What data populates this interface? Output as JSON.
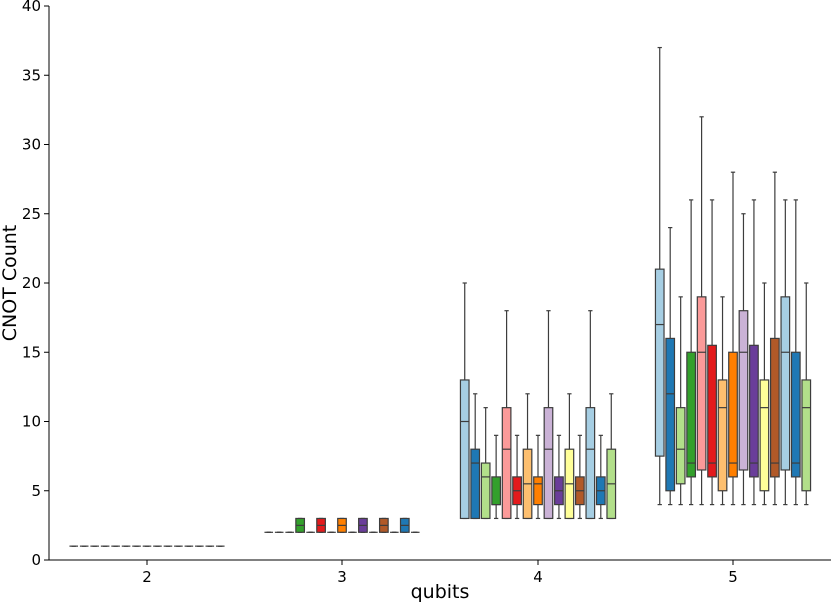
{
  "chart_data": {
    "type": "box",
    "xlabel": "qubits",
    "ylabel": "CNOT Count",
    "ylim": [
      0,
      40
    ],
    "yticks": [
      0,
      5,
      10,
      15,
      20,
      25,
      30,
      35,
      40
    ],
    "categories": [
      "2",
      "3",
      "4",
      "5"
    ],
    "grid": false,
    "legend": "none",
    "palette": [
      "#a6cee3",
      "#1f78b4",
      "#b2df8a",
      "#33a02c",
      "#fb9a99",
      "#e31a1c",
      "#fdbf6f",
      "#ff7f00",
      "#cab2d6",
      "#6a3d9a",
      "#ffff99",
      "#b15928"
    ],
    "groups": [
      {
        "category": "2",
        "boxes": [
          {
            "color": "#a6cee3",
            "whisker_low": 1,
            "q1": 1,
            "median": 1,
            "q3": 1,
            "whisker_high": 1
          },
          {
            "color": "#1f78b4",
            "whisker_low": 1,
            "q1": 1,
            "median": 1,
            "q3": 1,
            "whisker_high": 1
          },
          {
            "color": "#b2df8a",
            "whisker_low": 1,
            "q1": 1,
            "median": 1,
            "q3": 1,
            "whisker_high": 1
          },
          {
            "color": "#33a02c",
            "whisker_low": 1,
            "q1": 1,
            "median": 1,
            "q3": 1,
            "whisker_high": 1
          },
          {
            "color": "#fb9a99",
            "whisker_low": 1,
            "q1": 1,
            "median": 1,
            "q3": 1,
            "whisker_high": 1
          },
          {
            "color": "#e31a1c",
            "whisker_low": 1,
            "q1": 1,
            "median": 1,
            "q3": 1,
            "whisker_high": 1
          },
          {
            "color": "#fdbf6f",
            "whisker_low": 1,
            "q1": 1,
            "median": 1,
            "q3": 1,
            "whisker_high": 1
          },
          {
            "color": "#ff7f00",
            "whisker_low": 1,
            "q1": 1,
            "median": 1,
            "q3": 1,
            "whisker_high": 1
          },
          {
            "color": "#cab2d6",
            "whisker_low": 1,
            "q1": 1,
            "median": 1,
            "q3": 1,
            "whisker_high": 1
          },
          {
            "color": "#6a3d9a",
            "whisker_low": 1,
            "q1": 1,
            "median": 1,
            "q3": 1,
            "whisker_high": 1
          },
          {
            "color": "#ffff99",
            "whisker_low": 1,
            "q1": 1,
            "median": 1,
            "q3": 1,
            "whisker_high": 1
          },
          {
            "color": "#b15928",
            "whisker_low": 1,
            "q1": 1,
            "median": 1,
            "q3": 1,
            "whisker_high": 1
          },
          {
            "color": "#a6cee3",
            "whisker_low": 1,
            "q1": 1,
            "median": 1,
            "q3": 1,
            "whisker_high": 1
          },
          {
            "color": "#1f78b4",
            "whisker_low": 1,
            "q1": 1,
            "median": 1,
            "q3": 1,
            "whisker_high": 1
          },
          {
            "color": "#b2df8a",
            "whisker_low": 1,
            "q1": 1,
            "median": 1,
            "q3": 1,
            "whisker_high": 1
          }
        ]
      },
      {
        "category": "3",
        "boxes": [
          {
            "color": "#a6cee3",
            "whisker_low": 2,
            "q1": 2,
            "median": 2,
            "q3": 2,
            "whisker_high": 2
          },
          {
            "color": "#1f78b4",
            "whisker_low": 2,
            "q1": 2,
            "median": 2,
            "q3": 2,
            "whisker_high": 2
          },
          {
            "color": "#b2df8a",
            "whisker_low": 2,
            "q1": 2,
            "median": 2,
            "q3": 2,
            "whisker_high": 2
          },
          {
            "color": "#33a02c",
            "whisker_low": 2,
            "q1": 2,
            "median": 2.5,
            "q3": 3,
            "whisker_high": 3
          },
          {
            "color": "#fb9a99",
            "whisker_low": 2,
            "q1": 2,
            "median": 2,
            "q3": 2,
            "whisker_high": 2
          },
          {
            "color": "#e31a1c",
            "whisker_low": 2,
            "q1": 2,
            "median": 2.5,
            "q3": 3,
            "whisker_high": 3
          },
          {
            "color": "#fdbf6f",
            "whisker_low": 2,
            "q1": 2,
            "median": 2,
            "q3": 2,
            "whisker_high": 2
          },
          {
            "color": "#ff7f00",
            "whisker_low": 2,
            "q1": 2,
            "median": 2.5,
            "q3": 3,
            "whisker_high": 3
          },
          {
            "color": "#cab2d6",
            "whisker_low": 2,
            "q1": 2,
            "median": 2,
            "q3": 2,
            "whisker_high": 2
          },
          {
            "color": "#6a3d9a",
            "whisker_low": 2,
            "q1": 2,
            "median": 2.5,
            "q3": 3,
            "whisker_high": 3
          },
          {
            "color": "#ffff99",
            "whisker_low": 2,
            "q1": 2,
            "median": 2,
            "q3": 2,
            "whisker_high": 2
          },
          {
            "color": "#b15928",
            "whisker_low": 2,
            "q1": 2,
            "median": 2.5,
            "q3": 3,
            "whisker_high": 3
          },
          {
            "color": "#a6cee3",
            "whisker_low": 2,
            "q1": 2,
            "median": 2,
            "q3": 2,
            "whisker_high": 2
          },
          {
            "color": "#1f78b4",
            "whisker_low": 2,
            "q1": 2,
            "median": 2.5,
            "q3": 3,
            "whisker_high": 3
          },
          {
            "color": "#b2df8a",
            "whisker_low": 2,
            "q1": 2,
            "median": 2,
            "q3": 2,
            "whisker_high": 2
          }
        ]
      },
      {
        "category": "4",
        "boxes": [
          {
            "color": "#a6cee3",
            "whisker_low": 3,
            "q1": 3,
            "median": 10,
            "q3": 13,
            "whisker_high": 20
          },
          {
            "color": "#1f78b4",
            "whisker_low": 3,
            "q1": 3,
            "median": 7,
            "q3": 8,
            "whisker_high": 12
          },
          {
            "color": "#b2df8a",
            "whisker_low": 3,
            "q1": 3,
            "median": 6,
            "q3": 7,
            "whisker_high": 11
          },
          {
            "color": "#33a02c",
            "whisker_low": 3,
            "q1": 4,
            "median": 4,
            "q3": 6,
            "whisker_high": 9
          },
          {
            "color": "#fb9a99",
            "whisker_low": 3,
            "q1": 3,
            "median": 8,
            "q3": 11,
            "whisker_high": 18
          },
          {
            "color": "#e31a1c",
            "whisker_low": 3,
            "q1": 4,
            "median": 5,
            "q3": 6,
            "whisker_high": 9
          },
          {
            "color": "#fdbf6f",
            "whisker_low": 3,
            "q1": 3,
            "median": 5.5,
            "q3": 8,
            "whisker_high": 12
          },
          {
            "color": "#ff7f00",
            "whisker_low": 3,
            "q1": 4,
            "median": 5.5,
            "q3": 6,
            "whisker_high": 9
          },
          {
            "color": "#cab2d6",
            "whisker_low": 3,
            "q1": 3,
            "median": 8,
            "q3": 11,
            "whisker_high": 18
          },
          {
            "color": "#6a3d9a",
            "whisker_low": 3,
            "q1": 4,
            "median": 5,
            "q3": 6,
            "whisker_high": 9
          },
          {
            "color": "#ffff99",
            "whisker_low": 3,
            "q1": 3,
            "median": 5.5,
            "q3": 8,
            "whisker_high": 12
          },
          {
            "color": "#b15928",
            "whisker_low": 3,
            "q1": 4,
            "median": 5,
            "q3": 6,
            "whisker_high": 9
          },
          {
            "color": "#a6cee3",
            "whisker_low": 3,
            "q1": 3,
            "median": 8,
            "q3": 11,
            "whisker_high": 18
          },
          {
            "color": "#1f78b4",
            "whisker_low": 3,
            "q1": 4,
            "median": 5,
            "q3": 6,
            "whisker_high": 9
          },
          {
            "color": "#b2df8a",
            "whisker_low": 3,
            "q1": 3,
            "median": 5.5,
            "q3": 8,
            "whisker_high": 12
          }
        ]
      },
      {
        "category": "5",
        "boxes": [
          {
            "color": "#a6cee3",
            "whisker_low": 4,
            "q1": 7.5,
            "median": 17,
            "q3": 21,
            "whisker_high": 37
          },
          {
            "color": "#1f78b4",
            "whisker_low": 4,
            "q1": 5,
            "median": 12,
            "q3": 16,
            "whisker_high": 24
          },
          {
            "color": "#b2df8a",
            "whisker_low": 4,
            "q1": 5.5,
            "median": 8,
            "q3": 11,
            "whisker_high": 19
          },
          {
            "color": "#33a02c",
            "whisker_low": 4,
            "q1": 6,
            "median": 7,
            "q3": 15,
            "whisker_high": 26
          },
          {
            "color": "#fb9a99",
            "whisker_low": 4,
            "q1": 6.5,
            "median": 15,
            "q3": 19,
            "whisker_high": 32
          },
          {
            "color": "#e31a1c",
            "whisker_low": 4,
            "q1": 6,
            "median": 7,
            "q3": 15.5,
            "whisker_high": 26
          },
          {
            "color": "#fdbf6f",
            "whisker_low": 4,
            "q1": 5,
            "median": 11,
            "q3": 13,
            "whisker_high": 19
          },
          {
            "color": "#ff7f00",
            "whisker_low": 4,
            "q1": 6,
            "median": 7,
            "q3": 15,
            "whisker_high": 28
          },
          {
            "color": "#cab2d6",
            "whisker_low": 4,
            "q1": 6.5,
            "median": 15,
            "q3": 18,
            "whisker_high": 25
          },
          {
            "color": "#6a3d9a",
            "whisker_low": 4,
            "q1": 6,
            "median": 7,
            "q3": 15.5,
            "whisker_high": 26
          },
          {
            "color": "#ffff99",
            "whisker_low": 4,
            "q1": 5,
            "median": 11,
            "q3": 13,
            "whisker_high": 20
          },
          {
            "color": "#b15928",
            "whisker_low": 4,
            "q1": 6,
            "median": 7,
            "q3": 16,
            "whisker_high": 28
          },
          {
            "color": "#a6cee3",
            "whisker_low": 4,
            "q1": 6.5,
            "median": 15,
            "q3": 19,
            "whisker_high": 26
          },
          {
            "color": "#1f78b4",
            "whisker_low": 4,
            "q1": 6,
            "median": 7,
            "q3": 15,
            "whisker_high": 26
          },
          {
            "color": "#b2df8a",
            "whisker_low": 4,
            "q1": 5,
            "median": 11,
            "q3": 13,
            "whisker_high": 20
          }
        ]
      }
    ]
  }
}
